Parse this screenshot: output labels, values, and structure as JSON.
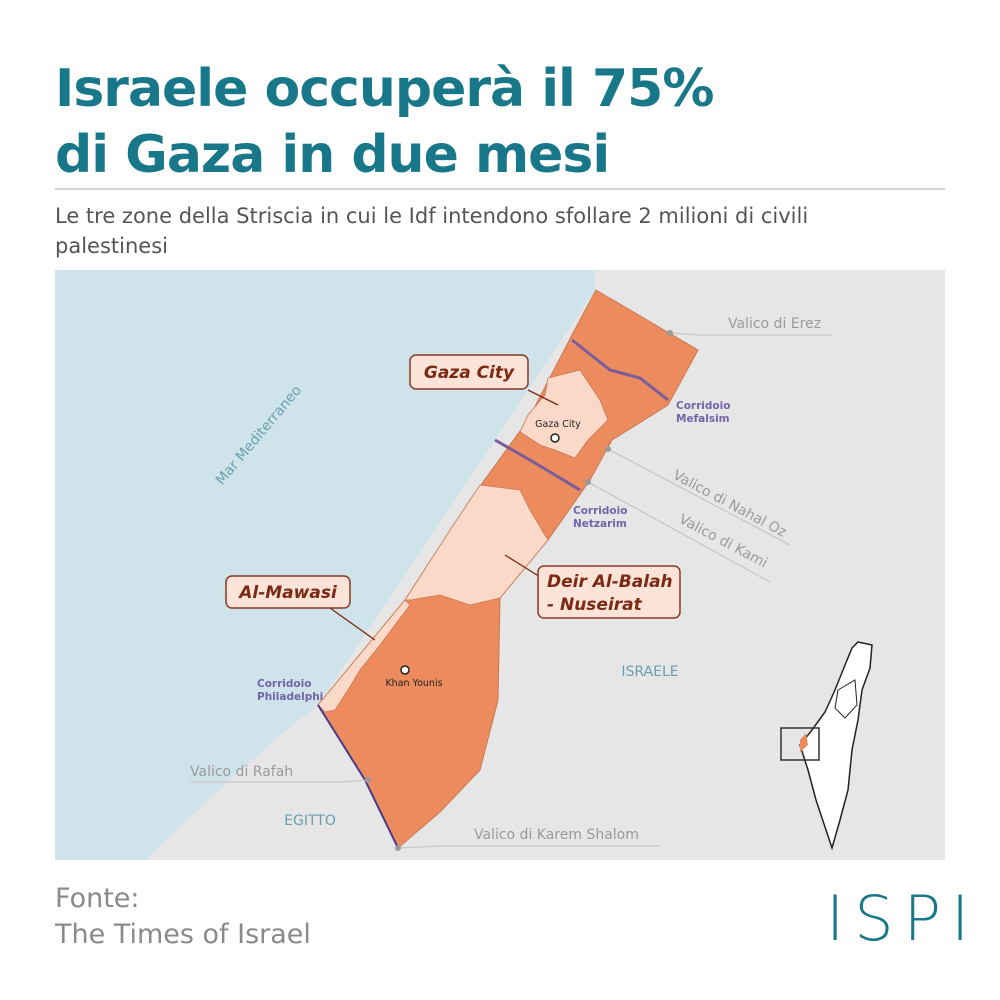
{
  "header": {
    "title_lines": [
      "Israele occuperà il 75%",
      "di Gaza in due mesi"
    ],
    "subtitle_lines": [
      "Le tre zone della Striscia in cui le Idf intendono sfollare 2 milioni di civili",
      "palestinesi"
    ]
  },
  "map": {
    "sea": "Mar Mediterraneo",
    "countries": [
      "ISRAELE",
      "EGITTO"
    ],
    "zones": [
      {
        "label_lines": [
          "Gaza City"
        ]
      },
      {
        "label_lines": [
          "Deir Al-Balah",
          "- Nuseirat"
        ]
      },
      {
        "label_lines": [
          "Al-Mawasi"
        ]
      }
    ],
    "cities": [
      "Gaza City",
      "Khan Younis"
    ],
    "crossings": [
      "Valico di Erez",
      "Valico di Nahal Oz",
      "Valico di Kami",
      "Valico di Rafah",
      "Valico di Karem Shalom"
    ],
    "corridors": [
      {
        "label_lines": [
          "Corridoio",
          "Mefalsim"
        ]
      },
      {
        "label_lines": [
          "Corridoio",
          "Netzarim"
        ]
      },
      {
        "label_lines": [
          "Corridoio",
          "Philadelphi"
        ]
      }
    ]
  },
  "footer": {
    "source_lines": [
      "Fonte:",
      "The Times of Israel"
    ],
    "logo": "ISPI"
  }
}
